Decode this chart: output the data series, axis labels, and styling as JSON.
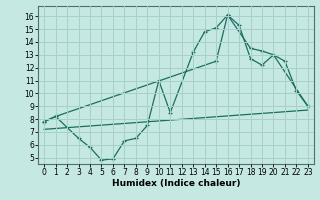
{
  "xlabel": "Humidex (Indice chaleur)",
  "bg_color": "#c5e8e2",
  "grid_color": "#a8d0cb",
  "line_color": "#1a6e60",
  "xlim": [
    -0.5,
    23.5
  ],
  "ylim": [
    4.5,
    16.8
  ],
  "xticks": [
    0,
    1,
    2,
    3,
    4,
    5,
    6,
    7,
    8,
    9,
    10,
    11,
    12,
    13,
    14,
    15,
    16,
    17,
    18,
    19,
    20,
    21,
    22,
    23
  ],
  "yticks": [
    5,
    6,
    7,
    8,
    9,
    10,
    11,
    12,
    13,
    14,
    15,
    16
  ],
  "line1_x": [
    0,
    1,
    3,
    4,
    5,
    6,
    7,
    8,
    9,
    10,
    11,
    13,
    14,
    15,
    16,
    17,
    18,
    19,
    20,
    21,
    22,
    23
  ],
  "line1_y": [
    7.8,
    8.2,
    6.5,
    5.8,
    4.8,
    4.9,
    6.3,
    6.5,
    7.5,
    11.0,
    8.5,
    13.2,
    14.8,
    15.1,
    16.1,
    15.3,
    12.7,
    12.2,
    13.0,
    12.5,
    10.2,
    9.0
  ],
  "line2_x": [
    0,
    1,
    15,
    16,
    18,
    19,
    20,
    23
  ],
  "line2_y": [
    7.8,
    8.2,
    12.5,
    16.1,
    13.5,
    13.3,
    13.0,
    9.0
  ],
  "line3_x": [
    0,
    23
  ],
  "line3_y": [
    7.2,
    8.7
  ],
  "xlabel_fontsize": 6.5,
  "tick_fontsize": 5.5
}
